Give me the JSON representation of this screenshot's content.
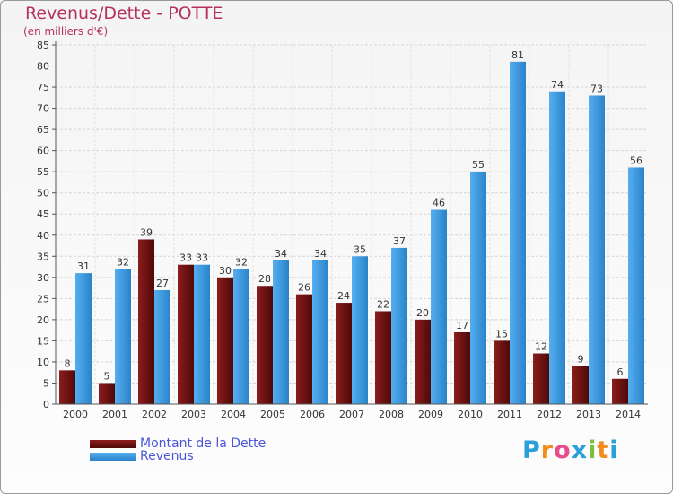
{
  "chart_data": {
    "type": "bar",
    "title": "Revenus/Dette - POTTE",
    "subtitle": "(en milliers d'€)",
    "categories": [
      "2000",
      "2001",
      "2002",
      "2003",
      "2004",
      "2005",
      "2006",
      "2007",
      "2008",
      "2009",
      "2010",
      "2011",
      "2012",
      "2013",
      "2014"
    ],
    "series": [
      {
        "name": "Montant de la Dette",
        "color": "#7a1515",
        "values": [
          8,
          5,
          39,
          33,
          30,
          28,
          26,
          24,
          22,
          20,
          17,
          15,
          12,
          9,
          6
        ]
      },
      {
        "name": "Revenus",
        "color": "#3c97dd",
        "values": [
          31,
          32,
          27,
          33,
          32,
          34,
          34,
          35,
          37,
          46,
          55,
          81,
          74,
          73,
          56
        ]
      }
    ],
    "ylim": [
      0,
      85
    ],
    "ytick_step": 5,
    "grid": true,
    "legend_position": "bottom-left"
  },
  "logo": {
    "text": "Proxiti",
    "letters": [
      {
        "ch": "P",
        "color": "#2a9fd8"
      },
      {
        "ch": "r",
        "color": "#f18d1d"
      },
      {
        "ch": "o",
        "color": "#e84c8a"
      },
      {
        "ch": "x",
        "color": "#2a9fd8"
      },
      {
        "ch": "i",
        "color": "#7bbf3a"
      },
      {
        "ch": "t",
        "color": "#f18d1d"
      },
      {
        "ch": "i",
        "color": "#2a9fd8"
      }
    ]
  }
}
